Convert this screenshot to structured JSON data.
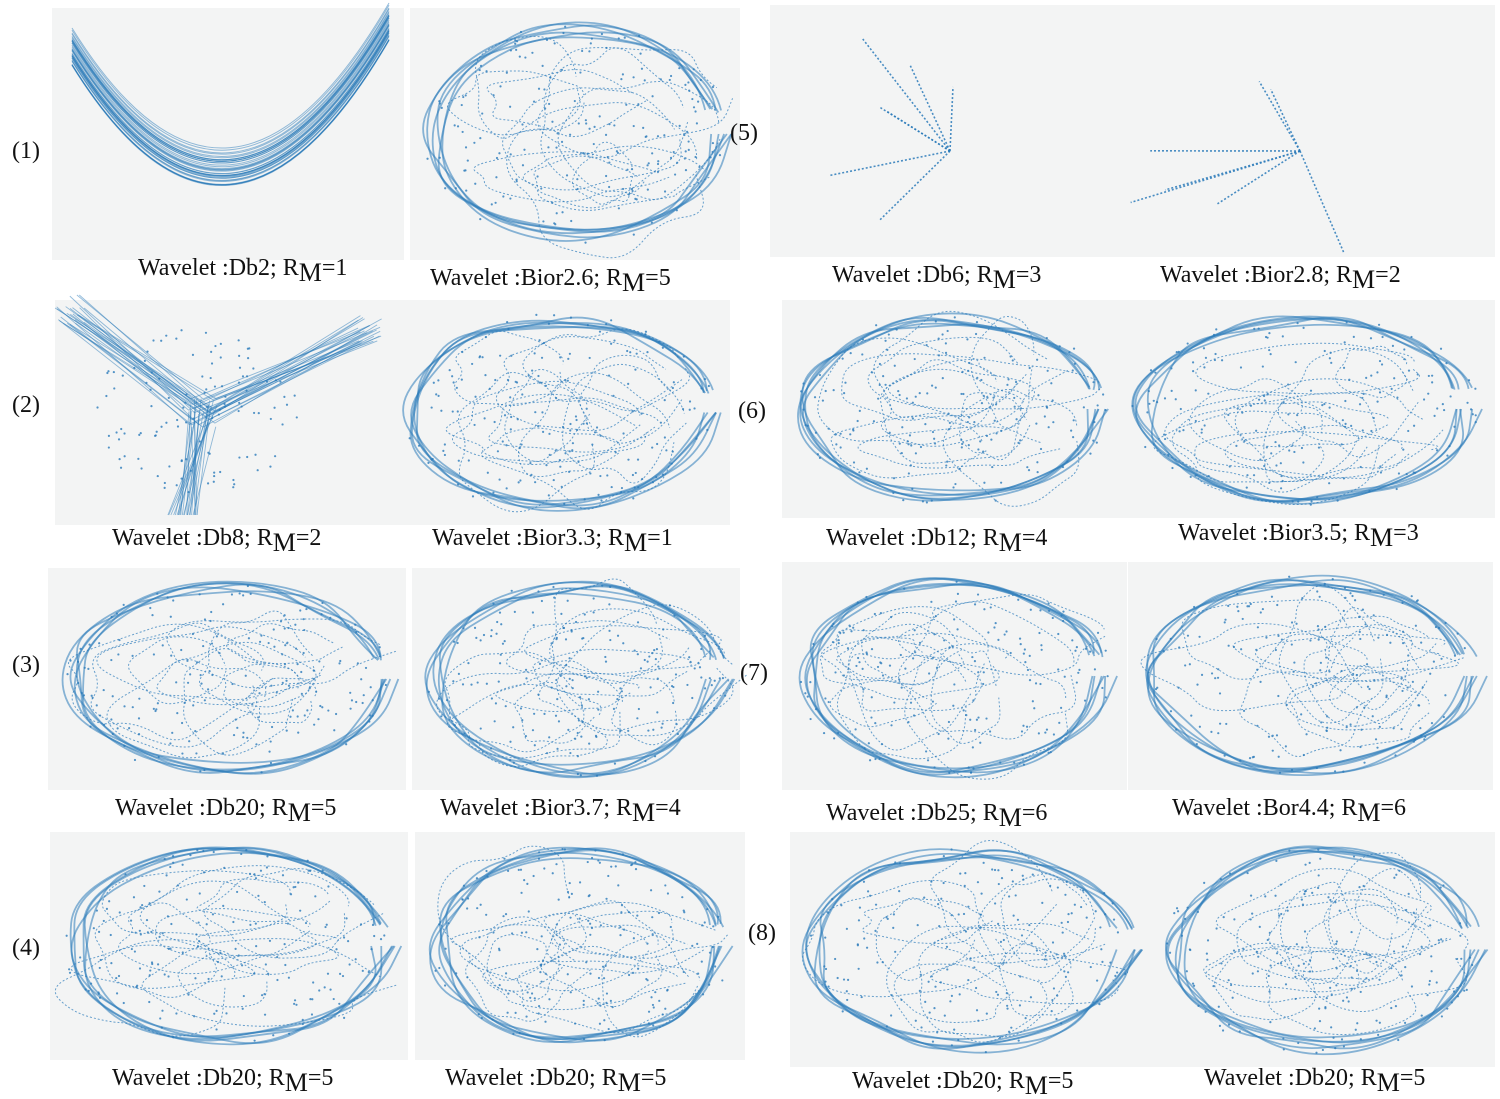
{
  "figure": {
    "rows": [
      {
        "label": "(1)",
        "panels": [
          {
            "text": "Wavelet :Db2; R",
            "sub": "M",
            "rest": "=1"
          },
          {
            "text": "Wavelet :Bior2.6; R",
            "sub": "M",
            "rest": "=5"
          }
        ]
      },
      {
        "label": "(2)",
        "panels": [
          {
            "text": "Wavelet :Db8; R",
            "sub": "M",
            "rest": "=2"
          },
          {
            "text": "Wavelet :Bior3.3; R",
            "sub": "M",
            "rest": "=1"
          }
        ]
      },
      {
        "label": "(3)",
        "panels": [
          {
            "text": "Wavelet :Db20; R",
            "sub": "M",
            "rest": "=5"
          },
          {
            "text": "Wavelet :Bior3.7; R",
            "sub": "M",
            "rest": "=4"
          }
        ]
      },
      {
        "label": "(4)",
        "panels": [
          {
            "text": "Wavelet :Db20; R",
            "sub": "M",
            "rest": "=5"
          },
          {
            "text": "Wavelet :Db20; R",
            "sub": "M",
            "rest": "=5"
          }
        ]
      },
      {
        "label": "(5)",
        "panels": [
          {
            "text": "Wavelet :Db6; R",
            "sub": "M",
            "rest": "=3"
          },
          {
            "text": "Wavelet :Bior2.8; R",
            "sub": "M",
            "rest": "=2"
          }
        ]
      },
      {
        "label": "(6)",
        "panels": [
          {
            "text": "Wavelet :Db12; R",
            "sub": "M",
            "rest": "=4"
          },
          {
            "text": "Wavelet :Bior3.5; R",
            "sub": "M",
            "rest": "=3"
          }
        ]
      },
      {
        "label": "(7)",
        "panels": [
          {
            "text": "Wavelet :Db25; R",
            "sub": "M",
            "rest": "=6"
          },
          {
            "text": "Wavelet :Bor4.4; R",
            "sub": "M",
            "rest": "=6"
          }
        ]
      },
      {
        "label": "(8)",
        "panels": [
          {
            "text": "Wavelet :Db20; R",
            "sub": "M",
            "rest": "=5"
          },
          {
            "text": "Wavelet :Db20; R",
            "sub": "M",
            "rest": "=5"
          }
        ]
      }
    ]
  }
}
